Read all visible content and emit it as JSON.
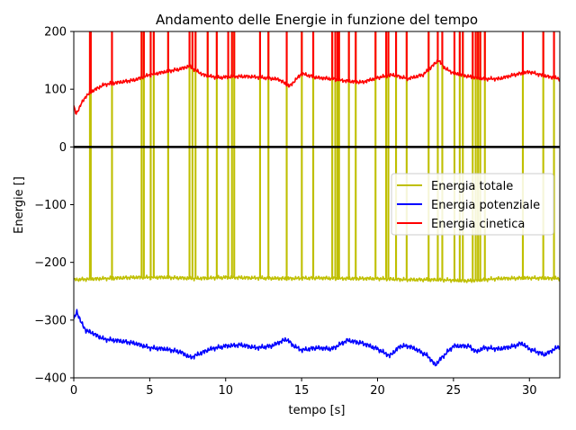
{
  "chart_data": {
    "type": "line",
    "title": "Andamento delle Energie in funzione del tempo",
    "xlabel": "tempo [s]",
    "ylabel": "Energie []",
    "xlim": [
      0,
      32
    ],
    "ylim": [
      -400,
      200
    ],
    "xticks": [
      0,
      5,
      10,
      15,
      20,
      25,
      30
    ],
    "yticks": [
      -400,
      -300,
      -200,
      -100,
      0,
      100,
      200
    ],
    "grid": false,
    "legend_position": "center-right",
    "reference_line": {
      "y": 0,
      "color": "#000000"
    },
    "series": [
      {
        "name": "Energia totale",
        "color": "#bfbf00",
        "baseline": [
          [
            0,
            -230
          ],
          [
            2,
            -228
          ],
          [
            4,
            -226
          ],
          [
            6,
            -226
          ],
          [
            8,
            -228
          ],
          [
            10,
            -226
          ],
          [
            12,
            -227
          ],
          [
            14,
            -228
          ],
          [
            16,
            -227
          ],
          [
            18,
            -228
          ],
          [
            20,
            -228
          ],
          [
            22,
            -230
          ],
          [
            24,
            -230
          ],
          [
            26,
            -232
          ],
          [
            28,
            -228
          ],
          [
            30,
            -227
          ],
          [
            32,
            -228
          ]
        ],
        "spikes_to_top": [
          1.05,
          1.1,
          2.5,
          4.45,
          4.6,
          5.05,
          5.25,
          6.2,
          7.6,
          7.8,
          8.0,
          8.8,
          9.4,
          10.15,
          10.4,
          10.55,
          12.25,
          12.8,
          14.0,
          15.0,
          15.75,
          17.0,
          17.2,
          17.35,
          17.45,
          18.1,
          18.55,
          19.85,
          20.55,
          20.7,
          21.2,
          21.9,
          23.35,
          23.95,
          24.25,
          25.05,
          25.4,
          25.6,
          26.25,
          26.45,
          26.6,
          26.75,
          27.05,
          29.55,
          30.9,
          31.6
        ]
      },
      {
        "name": "Energia potenziale",
        "color": "#0000ff",
        "values": [
          [
            0,
            -300
          ],
          [
            0.2,
            -285
          ],
          [
            0.5,
            -305
          ],
          [
            0.8,
            -318
          ],
          [
            1.2,
            -322
          ],
          [
            1.6,
            -328
          ],
          [
            2,
            -333
          ],
          [
            3,
            -336
          ],
          [
            4,
            -340
          ],
          [
            5,
            -348
          ],
          [
            6,
            -350
          ],
          [
            7,
            -355
          ],
          [
            7.7,
            -365
          ],
          [
            8.3,
            -358
          ],
          [
            9,
            -350
          ],
          [
            10,
            -345
          ],
          [
            11,
            -343
          ],
          [
            12,
            -348
          ],
          [
            13,
            -345
          ],
          [
            14,
            -333
          ],
          [
            14.5,
            -345
          ],
          [
            15,
            -352
          ],
          [
            16,
            -348
          ],
          [
            17,
            -350
          ],
          [
            18,
            -335
          ],
          [
            19,
            -340
          ],
          [
            20,
            -350
          ],
          [
            20.8,
            -362
          ],
          [
            21.5,
            -345
          ],
          [
            22,
            -345
          ],
          [
            22.5,
            -350
          ],
          [
            23.3,
            -362
          ],
          [
            23.8,
            -378
          ],
          [
            24.3,
            -363
          ],
          [
            25,
            -345
          ],
          [
            26,
            -345
          ],
          [
            26.5,
            -355
          ],
          [
            27,
            -348
          ],
          [
            28,
            -350
          ],
          [
            29,
            -345
          ],
          [
            29.5,
            -340
          ],
          [
            30,
            -350
          ],
          [
            31,
            -360
          ],
          [
            32,
            -345
          ]
        ]
      },
      {
        "name": "Energia cinetica",
        "color": "#ff0000",
        "baseline": [
          [
            0,
            70
          ],
          [
            0.15,
            57
          ],
          [
            0.5,
            75
          ],
          [
            0.8,
            88
          ],
          [
            1.3,
            98
          ],
          [
            2,
            108
          ],
          [
            3,
            112
          ],
          [
            4,
            116
          ],
          [
            5,
            125
          ],
          [
            6,
            130
          ],
          [
            7,
            135
          ],
          [
            7.6,
            140
          ],
          [
            8.5,
            125
          ],
          [
            9.5,
            120
          ],
          [
            10.5,
            122
          ],
          [
            11.5,
            122
          ],
          [
            12.5,
            120
          ],
          [
            13.5,
            117
          ],
          [
            14.2,
            105
          ],
          [
            15,
            127
          ],
          [
            16,
            120
          ],
          [
            17,
            118
          ],
          [
            18,
            114
          ],
          [
            19,
            112
          ],
          [
            20,
            120
          ],
          [
            21,
            125
          ],
          [
            22,
            118
          ],
          [
            23,
            125
          ],
          [
            24,
            150
          ],
          [
            24.5,
            135
          ],
          [
            25,
            128
          ],
          [
            26,
            122
          ],
          [
            27,
            118
          ],
          [
            28,
            118
          ],
          [
            29,
            125
          ],
          [
            30,
            130
          ],
          [
            31,
            123
          ],
          [
            32,
            118
          ]
        ],
        "spikes_to_top": [
          1.05,
          1.1,
          2.5,
          4.45,
          4.6,
          5.05,
          5.25,
          6.2,
          7.6,
          7.8,
          8.0,
          8.8,
          9.4,
          10.15,
          10.4,
          10.55,
          12.25,
          12.8,
          14.0,
          15.0,
          15.75,
          17.0,
          17.2,
          17.35,
          17.45,
          18.1,
          18.55,
          19.85,
          20.55,
          20.7,
          21.2,
          21.9,
          23.35,
          23.95,
          24.25,
          25.05,
          25.4,
          25.6,
          26.25,
          26.45,
          26.6,
          26.75,
          27.05,
          29.55,
          30.9,
          31.6
        ]
      }
    ]
  }
}
